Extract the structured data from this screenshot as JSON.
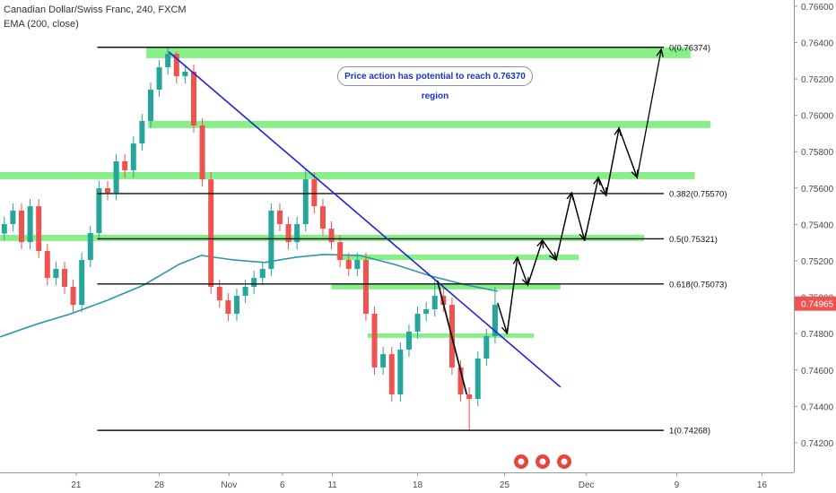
{
  "chart_data": {
    "type": "candlestick",
    "title": "Canadian Dollar/Swiss Franc, 240, FXCM",
    "indicator": "EMA (200, close)",
    "annotation": "Price action has potential to reach 0.76370 region",
    "xlim": [
      0,
      92.2
    ],
    "ylim": [
      0.74037,
      0.76634
    ],
    "grid": true,
    "xticks": [
      {
        "value": 8.85,
        "label": "21"
      },
      {
        "value": 18.5,
        "label": "28"
      },
      {
        "value": 26.6,
        "label": "Nov"
      },
      {
        "value": 32.8,
        "label": "6"
      },
      {
        "value": 38.6,
        "label": "11"
      },
      {
        "value": 48.5,
        "label": "18"
      },
      {
        "value": 58.6,
        "label": "25"
      },
      {
        "value": 68.1,
        "label": "Dec"
      },
      {
        "value": 78.6,
        "label": "9"
      },
      {
        "value": 88.5,
        "label": "16"
      }
    ],
    "yticks": [
      {
        "value": 0.742,
        "label": "0.74200"
      },
      {
        "value": 0.744,
        "label": "0.74400"
      },
      {
        "value": 0.746,
        "label": "0.74600"
      },
      {
        "value": 0.748,
        "label": "0.74800"
      },
      {
        "value": 0.75,
        "label": "0.75000"
      },
      {
        "value": 0.752,
        "label": "0.75200"
      },
      {
        "value": 0.754,
        "label": "0.75400"
      },
      {
        "value": 0.756,
        "label": "0.75600"
      },
      {
        "value": 0.758,
        "label": "0.75800"
      },
      {
        "value": 0.76,
        "label": "0.76000"
      },
      {
        "value": 0.762,
        "label": "0.76200"
      },
      {
        "value": 0.764,
        "label": "0.76400"
      },
      {
        "value": 0.766,
        "label": "0.76600"
      }
    ],
    "up_color": "#26a69a",
    "down_color": "#ef5350",
    "x": [
      0.5,
      1.5,
      2.5,
      3.5,
      4.5,
      5.5,
      6.5,
      7.5,
      8.5,
      9.5,
      10.5,
      11.5,
      12.5,
      13.5,
      14.5,
      15.5,
      16.5,
      17.5,
      18.5,
      19.5,
      20.5,
      21.5,
      22.5,
      23.5,
      24.5,
      25.5,
      26.5,
      27.5,
      28.5,
      29.5,
      30.5,
      31.5,
      32.5,
      33.5,
      34.5,
      35.5,
      36.5,
      37.5,
      38.5,
      39.5,
      40.5,
      41.5,
      42.5,
      43.5,
      44.5,
      45.5,
      46.5,
      47.5,
      48.5,
      49.5,
      50.5,
      51.5,
      52.5,
      53.5,
      54.5,
      55.5,
      56.5,
      57.5
    ],
    "open": [
      0.7535,
      0.75402,
      0.75476,
      0.75303,
      0.755,
      0.75254,
      0.75106,
      0.75156,
      0.75057,
      0.74958,
      0.75205,
      0.75353,
      0.75599,
      0.75574,
      0.75747,
      0.75698,
      0.75845,
      0.75969,
      0.76141,
      0.76264,
      0.76338,
      0.76215,
      0.7624,
      0.75944,
      0.75648,
      0.75057,
      0.74983,
      0.74909,
      0.75008,
      0.75057,
      0.75106,
      0.75156,
      0.75476,
      0.75402,
      0.75303,
      0.75402,
      0.75648,
      0.755,
      0.75377,
      0.75303,
      0.75205,
      0.75156,
      0.75205,
      0.74909,
      0.74614,
      0.74687,
      0.74466,
      0.74712,
      0.74811,
      0.74909,
      0.74934,
      0.75008,
      0.74958,
      0.74614,
      0.74466,
      0.74441,
      0.74663,
      0.74786
    ],
    "high": [
      0.75442,
      0.75516,
      0.75516,
      0.7554,
      0.7554,
      0.75294,
      0.75196,
      0.75196,
      0.75097,
      0.75245,
      0.75393,
      0.75639,
      0.75639,
      0.75787,
      0.75787,
      0.75885,
      0.76009,
      0.76181,
      0.76304,
      0.7637,
      0.7635,
      0.7628,
      0.7628,
      0.75984,
      0.75688,
      0.75097,
      0.75023,
      0.75048,
      0.75097,
      0.75146,
      0.75196,
      0.75516,
      0.75516,
      0.75442,
      0.75442,
      0.757,
      0.75688,
      0.7554,
      0.75417,
      0.75343,
      0.75245,
      0.75245,
      0.75245,
      0.74949,
      0.74727,
      0.74727,
      0.74752,
      0.74851,
      0.74949,
      0.74974,
      0.751,
      0.75048,
      0.74998,
      0.74654,
      0.74506,
      0.74703,
      0.74826,
      0.7506
    ],
    "low": [
      0.7531,
      0.75362,
      0.75263,
      0.75263,
      0.75214,
      0.75066,
      0.75066,
      0.75017,
      0.74918,
      0.74918,
      0.75165,
      0.75313,
      0.75534,
      0.75534,
      0.75658,
      0.75658,
      0.75805,
      0.75929,
      0.76101,
      0.76224,
      0.76175,
      0.76175,
      0.75904,
      0.75608,
      0.75017,
      0.74943,
      0.74869,
      0.74869,
      0.74968,
      0.75017,
      0.75066,
      0.75116,
      0.75362,
      0.75263,
      0.75263,
      0.75362,
      0.7546,
      0.75337,
      0.75263,
      0.75165,
      0.75116,
      0.75116,
      0.74869,
      0.74574,
      0.74574,
      0.74426,
      0.74426,
      0.74672,
      0.74771,
      0.74869,
      0.74894,
      0.74918,
      0.74574,
      0.74426,
      0.74268,
      0.74401,
      0.74623,
      0.74746
    ],
    "close": [
      0.75402,
      0.75476,
      0.75303,
      0.755,
      0.75254,
      0.75106,
      0.75156,
      0.75057,
      0.74958,
      0.75205,
      0.75353,
      0.75599,
      0.75574,
      0.75747,
      0.75698,
      0.75845,
      0.75969,
      0.76141,
      0.76264,
      0.76338,
      0.76215,
      0.7624,
      0.75944,
      0.75648,
      0.75057,
      0.74983,
      0.74909,
      0.75008,
      0.75057,
      0.75106,
      0.75156,
      0.75476,
      0.75402,
      0.75303,
      0.75402,
      0.75648,
      0.755,
      0.75377,
      0.75303,
      0.75205,
      0.75156,
      0.75205,
      0.74909,
      0.74614,
      0.74687,
      0.74466,
      0.74712,
      0.74811,
      0.74909,
      0.74934,
      0.75008,
      0.74958,
      0.74614,
      0.74466,
      0.74441,
      0.74663,
      0.74786,
      0.74958
    ],
    "ema": {
      "color": "#2a98aa",
      "x": [
        0,
        4.2,
        8.3,
        12.5,
        16.7,
        20.8,
        23.4,
        27.1,
        30.7,
        34.4,
        37.5,
        41.7,
        45.8,
        50,
        54.2,
        57.8
      ],
      "y": [
        0.74782,
        0.74851,
        0.7491,
        0.74984,
        0.75067,
        0.75181,
        0.7523,
        0.75205,
        0.75191,
        0.7522,
        0.75235,
        0.7523,
        0.75181,
        0.75117,
        0.75067,
        0.75033
      ]
    },
    "last_price": 0.74965,
    "last_price_color": "#ef5350",
    "zone_color": "#72ec72",
    "zones": [
      {
        "x": [
          17.0,
          80.2
        ],
        "y": [
          0.76314,
          0.76373
        ]
      },
      {
        "x": [
          17.2,
          82.5
        ],
        "y": [
          0.7593,
          0.75969
        ]
      },
      {
        "x": [
          0,
          80.7
        ],
        "y": [
          0.75649,
          0.75688
        ]
      },
      {
        "x": [
          0,
          74.8
        ],
        "y": [
          0.75309,
          0.75343
        ]
      },
      {
        "x": [
          39.1,
          67.2
        ],
        "y": [
          0.75205,
          0.75235
        ]
      },
      {
        "x": [
          38.5,
          65.1
        ],
        "y": [
          0.75043,
          0.75077
        ]
      },
      {
        "x": [
          42.7,
          62.0
        ],
        "y": [
          0.74777,
          0.74801
        ]
      }
    ],
    "fib_x": [
      11.3,
      77.1
    ],
    "fib_levels": [
      {
        "label": "0(0.76374)",
        "value": 0.76374
      },
      {
        "label": "0.382(0.75570)",
        "value": 0.7557
      },
      {
        "label": "0.5(0.75321)",
        "value": 0.75321
      },
      {
        "label": "0.618(0.75073)",
        "value": 0.75073
      },
      {
        "label": "1(0.74268)",
        "value": 0.74268
      }
    ],
    "trend_line": {
      "color": "#1e22e0",
      "x": [
        19.6,
        65.1
      ],
      "y": [
        0.76349,
        0.74506
      ]
    },
    "down_leg": {
      "x": [
        50.8,
        54.2
      ],
      "y": [
        0.75092,
        0.74466
      ]
    },
    "projection": {
      "x": [
        57.8,
        58.9,
        60.1,
        61.3,
        63.0,
        64.6,
        66.4,
        67.9,
        69.5,
        70.4,
        71.9,
        74.0,
        76.8
      ],
      "y": [
        0.74968,
        0.74801,
        0.7522,
        0.75067,
        0.75313,
        0.75205,
        0.75575,
        0.75313,
        0.75658,
        0.7556,
        0.75929,
        0.75658,
        0.76363
      ]
    }
  }
}
